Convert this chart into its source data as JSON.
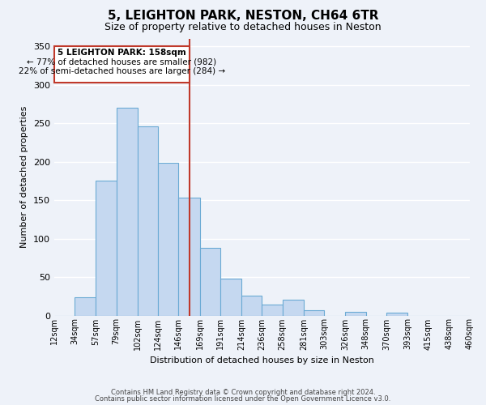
{
  "title": "5, LEIGHTON PARK, NESTON, CH64 6TR",
  "subtitle": "Size of property relative to detached houses in Neston",
  "xlabel": "Distribution of detached houses by size in Neston",
  "ylabel": "Number of detached properties",
  "bar_values": [
    0,
    24,
    175,
    270,
    246,
    198,
    153,
    88,
    48,
    26,
    14,
    21,
    7,
    0,
    5,
    0,
    4,
    0,
    0,
    0
  ],
  "bin_edges": [
    12,
    34,
    57,
    79,
    102,
    124,
    146,
    169,
    191,
    214,
    236,
    258,
    281,
    303,
    326,
    348,
    370,
    393,
    415,
    438,
    460
  ],
  "tick_labels": [
    "12sqm",
    "34sqm",
    "57sqm",
    "79sqm",
    "102sqm",
    "124sqm",
    "146sqm",
    "169sqm",
    "191sqm",
    "214sqm",
    "236sqm",
    "258sqm",
    "281sqm",
    "303sqm",
    "326sqm",
    "348sqm",
    "370sqm",
    "393sqm",
    "415sqm",
    "438sqm",
    "460sqm"
  ],
  "bar_color": "#c5d8f0",
  "bar_edge_color": "#6aaad4",
  "vline_x": 158,
  "vline_color": "#c0392b",
  "annotation_box_color": "#c0392b",
  "annotation_title": "5 LEIGHTON PARK: 158sqm",
  "annotation_line1": "← 77% of detached houses are smaller (982)",
  "annotation_line2": "22% of semi-detached houses are larger (284) →",
  "ylim": [
    0,
    360
  ],
  "yticks": [
    0,
    50,
    100,
    150,
    200,
    250,
    300,
    350
  ],
  "footer1": "Contains HM Land Registry data © Crown copyright and database right 2024.",
  "footer2": "Contains public sector information licensed under the Open Government Licence v3.0.",
  "bg_color": "#eef2f9",
  "grid_color": "#ffffff"
}
